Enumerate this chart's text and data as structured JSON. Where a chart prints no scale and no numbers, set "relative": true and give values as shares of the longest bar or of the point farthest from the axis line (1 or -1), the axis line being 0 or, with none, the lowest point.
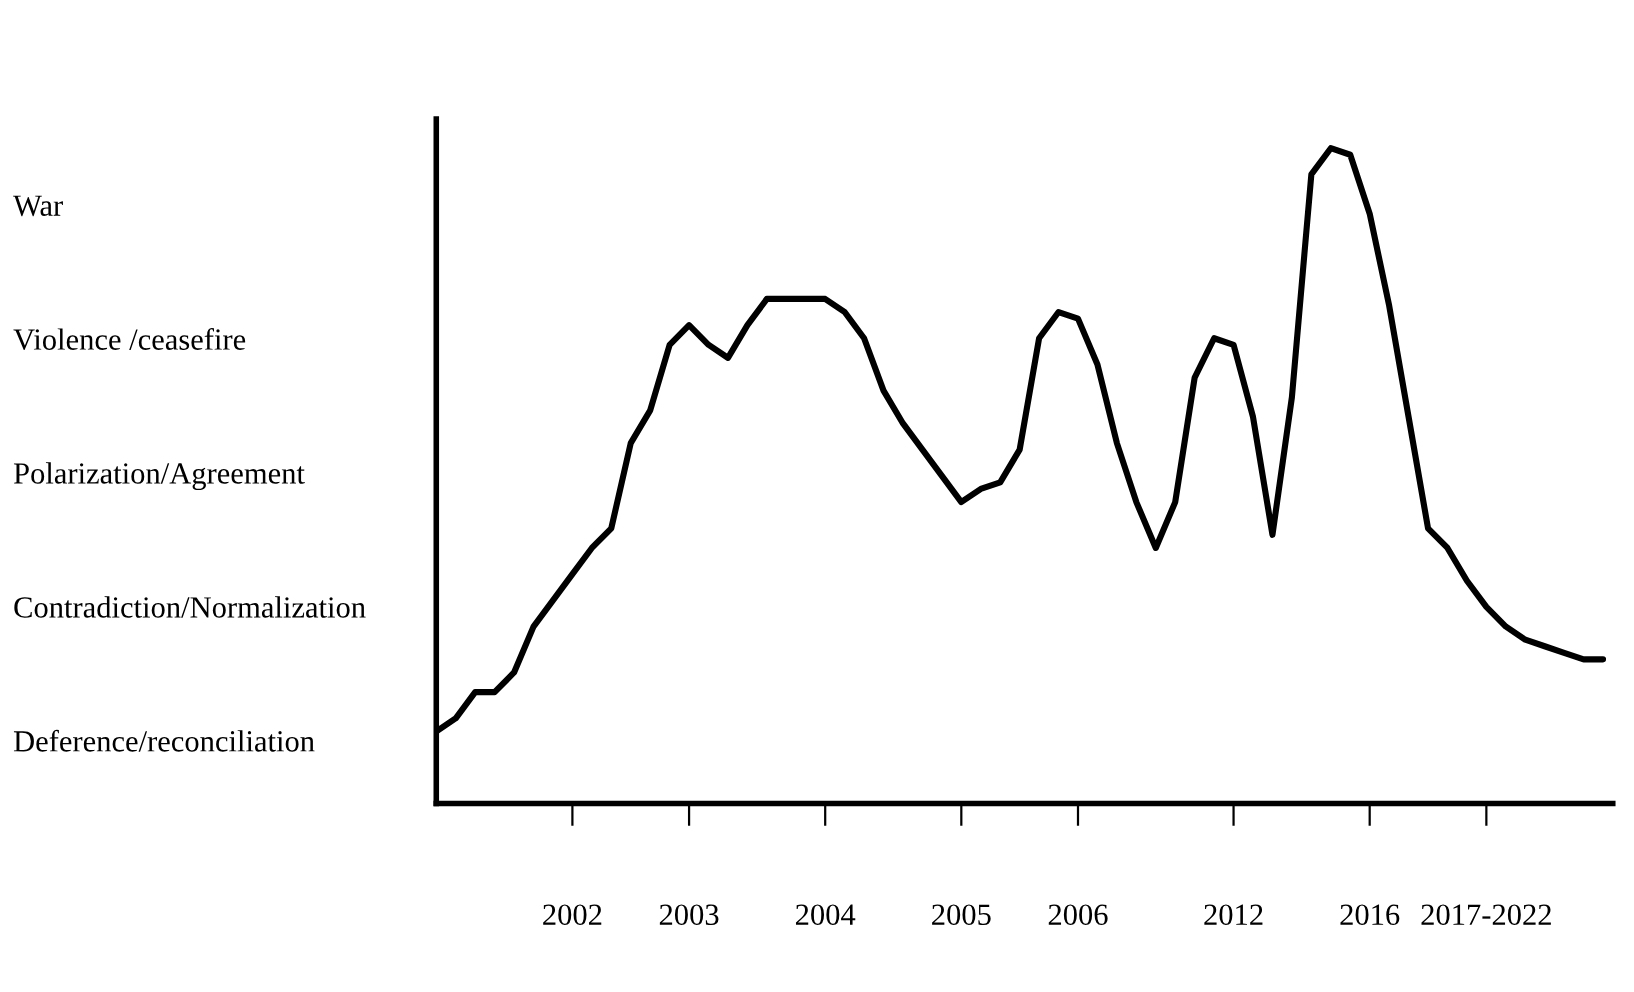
{
  "chart_data": {
    "type": "line",
    "color": "#000000",
    "marker": "none",
    "line_style": "solid",
    "grid": false,
    "relative": true,
    "categories": [
      null,
      null,
      null,
      null,
      null,
      null,
      null,
      "2002",
      null,
      null,
      null,
      null,
      null,
      "2003",
      null,
      null,
      null,
      null,
      null,
      null,
      "2004",
      null,
      null,
      null,
      null,
      null,
      null,
      "2005",
      null,
      null,
      null,
      null,
      null,
      "2006",
      null,
      null,
      null,
      null,
      null,
      null,
      null,
      "2012",
      null,
      null,
      null,
      null,
      null,
      null,
      "2016",
      null,
      null,
      null,
      null,
      null,
      "2017-2022",
      null,
      null,
      null,
      null,
      null,
      null
    ],
    "values": [
      0.11,
      0.13,
      0.17,
      0.17,
      0.2,
      0.27,
      0.31,
      0.35,
      0.39,
      0.42,
      0.55,
      0.6,
      0.7,
      0.73,
      0.7,
      0.68,
      0.73,
      0.77,
      0.77,
      0.77,
      0.77,
      0.75,
      0.71,
      0.63,
      0.58,
      0.54,
      0.5,
      0.46,
      0.48,
      0.49,
      0.54,
      0.71,
      0.75,
      0.74,
      0.67,
      0.55,
      0.46,
      0.39,
      0.46,
      0.65,
      0.71,
      0.7,
      0.59,
      0.41,
      0.62,
      0.96,
      1.0,
      0.99,
      0.9,
      0.76,
      0.59,
      0.42,
      0.39,
      0.34,
      0.3,
      0.27,
      0.25,
      0.24,
      0.23,
      0.22,
      0.22
    ],
    "annotations": [
      "War",
      "Violence /ceasefire",
      "Polarization/Agreement",
      "Contradiction/Normalization",
      "Deference/reconciliation"
    ]
  }
}
